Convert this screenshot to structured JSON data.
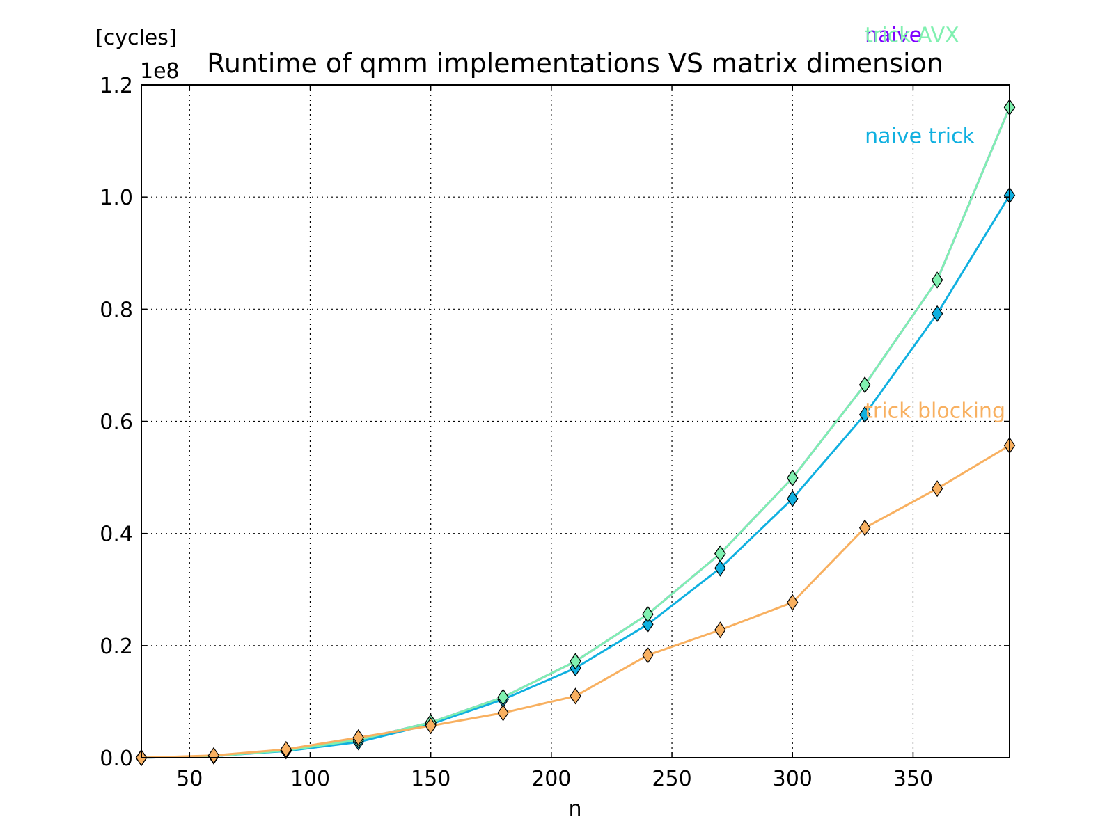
{
  "chart_data": {
    "type": "line",
    "title": "Runtime of qmm implementations VS matrix dimension",
    "xlabel": "n",
    "ylabel": "[cycles]",
    "y_multiplier": "1e8",
    "xlim": [
      30,
      390
    ],
    "ylim": [
      0,
      1.2
    ],
    "grid": true,
    "xticks": [
      50,
      100,
      150,
      200,
      250,
      300,
      350
    ],
    "xtick_labels": [
      "50",
      "100",
      "150",
      "200",
      "250",
      "300",
      "350"
    ],
    "yticks": [
      0.0,
      0.2,
      0.4,
      0.6,
      0.8,
      1.0,
      1.2
    ],
    "ytick_labels": [
      "0.0",
      "0.2",
      "0.4",
      "0.6",
      "0.8",
      "1.0",
      "1.2"
    ],
    "x": [
      30,
      60,
      90,
      120,
      150,
      180,
      210,
      240,
      270,
      300,
      330,
      360,
      390
    ],
    "series": [
      {
        "name": "naive",
        "color": "#7f00ff",
        "label_pos": [
          330,
          1.29
        ],
        "values": [
          0.0,
          0.003,
          0.013,
          0.032,
          0.063,
          0.108,
          0.172,
          0.256,
          0.364,
          0.499,
          0.665,
          0.852,
          1.16
        ]
      },
      {
        "name": "naive trick",
        "color": "#10b0e0",
        "label_pos": [
          330,
          1.11
        ],
        "values": [
          0.0,
          0.003,
          0.012,
          0.028,
          0.06,
          0.104,
          0.16,
          0.238,
          0.338,
          0.462,
          0.612,
          0.792,
          1.003
        ]
      },
      {
        "name": "trick AVX",
        "color": "#80f0b0",
        "label_pos": [
          330,
          1.29
        ],
        "values": [
          0.0,
          0.003,
          0.013,
          0.032,
          0.063,
          0.108,
          0.172,
          0.256,
          0.364,
          0.499,
          0.665,
          0.852,
          1.16
        ]
      },
      {
        "name": "trick blocking",
        "color": "#f8b060",
        "label_pos": [
          330,
          0.62
        ],
        "values": [
          0.0,
          0.004,
          0.015,
          0.036,
          0.057,
          0.08,
          0.11,
          0.183,
          0.228,
          0.277,
          0.41,
          0.48,
          0.557
        ]
      }
    ]
  }
}
